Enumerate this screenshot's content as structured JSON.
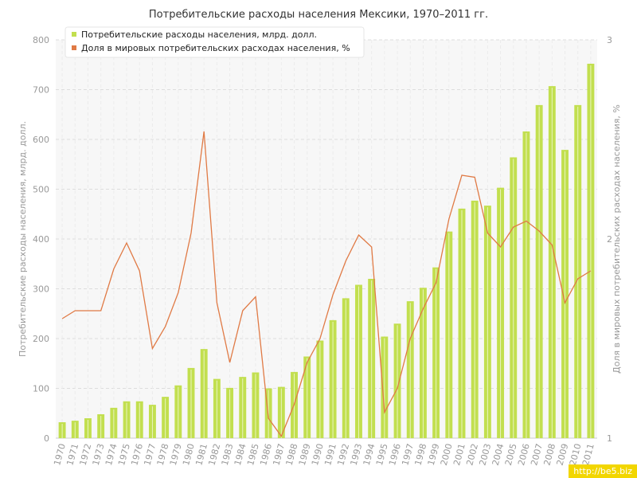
{
  "chart_data": {
    "type": "bar",
    "title": "Потребительские расходы населения Мексики, 1970–2011 гг.",
    "ylabel": "Потребительские расходы населения, млрд. долл.",
    "ylabel_right": "Доля в мировых потребительских расходах населения, %",
    "ylim": [
      0,
      800
    ],
    "yticks": [
      0,
      100,
      200,
      300,
      400,
      500,
      600,
      700,
      800
    ],
    "ylim_right": [
      1,
      3
    ],
    "yticks_right": [
      1,
      2,
      3
    ],
    "grid": true,
    "legend_position": "top-left",
    "categories": [
      "1970",
      "1971",
      "1972",
      "1973",
      "1974",
      "1975",
      "1976",
      "1977",
      "1978",
      "1979",
      "1980",
      "1981",
      "1982",
      "1983",
      "1984",
      "1985",
      "1986",
      "1987",
      "1988",
      "1989",
      "1990",
      "1991",
      "1992",
      "1993",
      "1994",
      "1995",
      "1996",
      "1997",
      "1998",
      "1999",
      "2000",
      "2001",
      "2002",
      "2003",
      "2004",
      "2005",
      "2006",
      "2007",
      "2008",
      "2009",
      "2010",
      "2011"
    ],
    "series": [
      {
        "name": "Потребительские расходы населения, млрд. долл.",
        "kind": "bar",
        "axis": "left",
        "color": "#c2df4f",
        "values": [
          32,
          35,
          40,
          48,
          61,
          74,
          74,
          67,
          83,
          106,
          141,
          179,
          119,
          101,
          123,
          132,
          100,
          103,
          133,
          164,
          196,
          237,
          281,
          308,
          320,
          204,
          230,
          275,
          302,
          343,
          415,
          461,
          477,
          467,
          503,
          564,
          616,
          669,
          707,
          579,
          669,
          752
        ]
      },
      {
        "name": "Доля в мировых потребительских расходах населения, %",
        "kind": "line",
        "axis": "right",
        "color": "#e07a45",
        "values": [
          1.6,
          1.64,
          1.64,
          1.64,
          1.85,
          1.98,
          1.84,
          1.45,
          1.56,
          1.73,
          2.03,
          2.54,
          1.68,
          1.38,
          1.64,
          1.71,
          1.1,
          1.01,
          1.17,
          1.38,
          1.5,
          1.72,
          1.89,
          2.02,
          1.96,
          1.13,
          1.25,
          1.5,
          1.65,
          1.78,
          2.1,
          2.32,
          2.31,
          2.03,
          1.96,
          2.06,
          2.09,
          2.04,
          1.97,
          1.68,
          1.8,
          1.84
        ]
      }
    ]
  },
  "watermark": "http://be5.biz"
}
